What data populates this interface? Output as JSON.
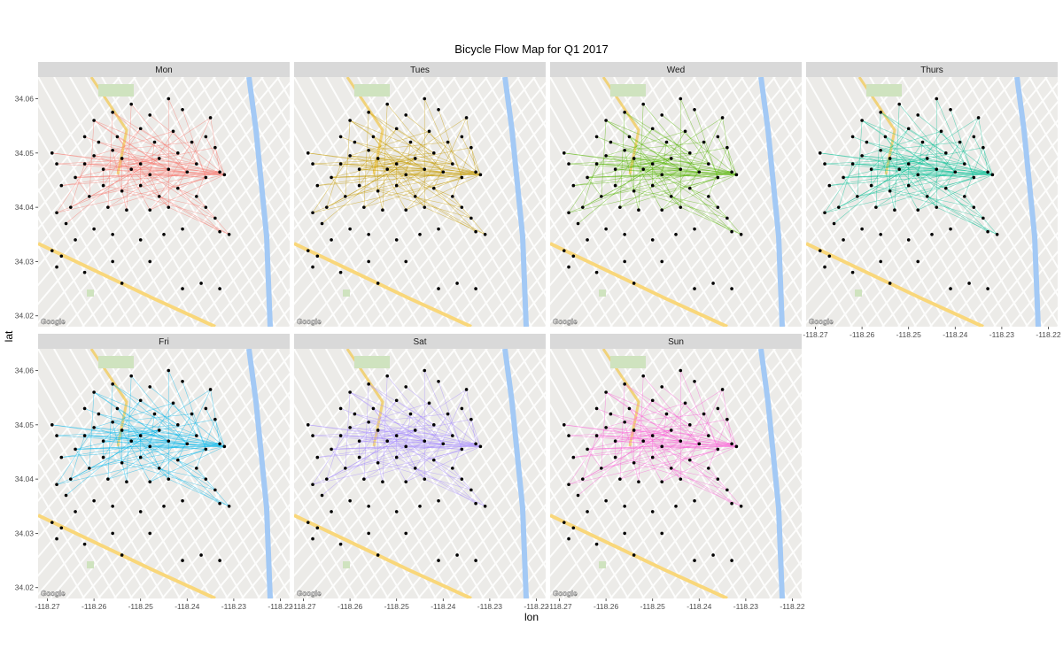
{
  "chart_data": {
    "type": "scatter",
    "title": "Bicycle Flow Map for Q1 2017",
    "xlabel": "lon",
    "ylabel": "lat",
    "xlim": [
      -118.272,
      -118.218
    ],
    "ylim": [
      34.018,
      34.064
    ],
    "x_ticks": [
      -118.27,
      -118.26,
      -118.25,
      -118.24,
      -118.23,
      -118.22
    ],
    "x_tick_labels": [
      "-118.27",
      "-118.26",
      "-118.25",
      "-118.24",
      "-118.23",
      "-118.22"
    ],
    "y_ticks": [
      34.02,
      34.03,
      34.04,
      34.05,
      34.06
    ],
    "y_tick_labels": [
      "34.02",
      "34.03",
      "34.04",
      "34.05",
      "34.06"
    ],
    "grid": false,
    "facet_order": [
      "Mon",
      "Tues",
      "Wed",
      "Thurs",
      "Fri",
      "Sat",
      "Sun"
    ],
    "facets": [
      {
        "label": "Mon",
        "flow_color": "#F8766D"
      },
      {
        "label": "Tues",
        "flow_color": "#C49A00"
      },
      {
        "label": "Wed",
        "flow_color": "#53B400"
      },
      {
        "label": "Thurs",
        "flow_color": "#00C094"
      },
      {
        "label": "Fri",
        "flow_color": "#00B6EB"
      },
      {
        "label": "Sat",
        "flow_color": "#A58AFF"
      },
      {
        "label": "Sun",
        "flow_color": "#FB61D7"
      }
    ],
    "stations": [
      {
        "lon": -118.264,
        "lat": 34.0455
      },
      {
        "lon": -118.262,
        "lat": 34.048
      },
      {
        "lon": -118.26,
        "lat": 34.0495
      },
      {
        "lon": -118.258,
        "lat": 34.047
      },
      {
        "lon": -118.256,
        "lat": 34.0505
      },
      {
        "lon": -118.254,
        "lat": 34.049
      },
      {
        "lon": -118.252,
        "lat": 34.047
      },
      {
        "lon": -118.25,
        "lat": 34.048
      },
      {
        "lon": -118.248,
        "lat": 34.046
      },
      {
        "lon": -118.246,
        "lat": 34.049
      },
      {
        "lon": -118.244,
        "lat": 34.047
      },
      {
        "lon": -118.242,
        "lat": 34.05
      },
      {
        "lon": -118.24,
        "lat": 34.0465
      },
      {
        "lon": -118.238,
        "lat": 34.048
      },
      {
        "lon": -118.236,
        "lat": 34.0455
      },
      {
        "lon": -118.233,
        "lat": 34.0465
      },
      {
        "lon": -118.232,
        "lat": 34.046
      },
      {
        "lon": -118.255,
        "lat": 34.053
      },
      {
        "lon": -118.25,
        "lat": 34.0545
      },
      {
        "lon": -118.247,
        "lat": 34.052
      },
      {
        "lon": -118.243,
        "lat": 34.054
      },
      {
        "lon": -118.239,
        "lat": 34.052
      },
      {
        "lon": -118.235,
        "lat": 34.0565
      },
      {
        "lon": -118.234,
        "lat": 34.051
      },
      {
        "lon": -118.26,
        "lat": 34.056
      },
      {
        "lon": -118.256,
        "lat": 34.0575
      },
      {
        "lon": -118.252,
        "lat": 34.059
      },
      {
        "lon": -118.244,
        "lat": 34.06
      },
      {
        "lon": -118.258,
        "lat": 34.044
      },
      {
        "lon": -118.254,
        "lat": 34.043
      },
      {
        "lon": -118.25,
        "lat": 34.044
      },
      {
        "lon": -118.246,
        "lat": 34.042
      },
      {
        "lon": -118.242,
        "lat": 34.0435
      },
      {
        "lon": -118.238,
        "lat": 34.042
      },
      {
        "lon": -118.261,
        "lat": 34.042
      },
      {
        "lon": -118.265,
        "lat": 34.04
      },
      {
        "lon": -118.268,
        "lat": 34.039
      },
      {
        "lon": -118.266,
        "lat": 34.037
      },
      {
        "lon": -118.257,
        "lat": 34.04
      },
      {
        "lon": -118.253,
        "lat": 34.0395
      },
      {
        "lon": -118.248,
        "lat": 34.0395
      },
      {
        "lon": -118.244,
        "lat": 34.04
      },
      {
        "lon": -118.236,
        "lat": 34.04
      },
      {
        "lon": -118.234,
        "lat": 34.038
      },
      {
        "lon": -118.233,
        "lat": 34.0355
      },
      {
        "lon": -118.231,
        "lat": 34.035
      },
      {
        "lon": -118.268,
        "lat": 34.048
      },
      {
        "lon": -118.269,
        "lat": 34.05
      },
      {
        "lon": -118.267,
        "lat": 34.044
      },
      {
        "lon": -118.269,
        "lat": 34.032
      },
      {
        "lon": -118.267,
        "lat": 34.031
      },
      {
        "lon": -118.264,
        "lat": 34.034
      },
      {
        "lon": -118.26,
        "lat": 34.036
      },
      {
        "lon": -118.256,
        "lat": 34.035
      },
      {
        "lon": -118.25,
        "lat": 34.034
      },
      {
        "lon": -118.245,
        "lat": 34.035
      },
      {
        "lon": -118.241,
        "lat": 34.036
      },
      {
        "lon": -118.256,
        "lat": 34.03
      },
      {
        "lon": -118.248,
        "lat": 34.03
      },
      {
        "lon": -118.262,
        "lat": 34.028
      },
      {
        "lon": -118.254,
        "lat": 34.026
      },
      {
        "lon": -118.268,
        "lat": 34.029
      },
      {
        "lon": -118.241,
        "lat": 34.025
      },
      {
        "lon": -118.237,
        "lat": 34.026
      },
      {
        "lon": -118.233,
        "lat": 34.025
      },
      {
        "lon": -118.259,
        "lat": 34.052
      },
      {
        "lon": -118.262,
        "lat": 34.053
      },
      {
        "lon": -118.248,
        "lat": 34.057
      },
      {
        "lon": -118.241,
        "lat": 34.058
      },
      {
        "lon": -118.236,
        "lat": 34.053
      }
    ],
    "flows": [
      [
        0,
        9
      ],
      [
        0,
        12
      ],
      [
        0,
        15
      ],
      [
        1,
        7
      ],
      [
        1,
        10
      ],
      [
        1,
        16
      ],
      [
        2,
        8
      ],
      [
        2,
        13
      ],
      [
        2,
        20
      ],
      [
        3,
        9
      ],
      [
        3,
        14
      ],
      [
        3,
        18
      ],
      [
        4,
        10
      ],
      [
        4,
        15
      ],
      [
        4,
        21
      ],
      [
        5,
        11
      ],
      [
        5,
        16
      ],
      [
        5,
        29
      ],
      [
        6,
        12
      ],
      [
        6,
        22
      ],
      [
        6,
        33
      ],
      [
        7,
        13
      ],
      [
        7,
        17
      ],
      [
        7,
        30
      ],
      [
        8,
        14
      ],
      [
        8,
        19
      ],
      [
        8,
        31
      ],
      [
        9,
        16
      ],
      [
        9,
        23
      ],
      [
        9,
        35
      ],
      [
        10,
        17
      ],
      [
        10,
        24
      ],
      [
        10,
        38
      ],
      [
        11,
        18
      ],
      [
        11,
        25
      ],
      [
        12,
        19
      ],
      [
        12,
        26
      ],
      [
        12,
        40
      ],
      [
        13,
        20
      ],
      [
        13,
        27
      ],
      [
        14,
        21
      ],
      [
        14,
        32
      ],
      [
        15,
        22
      ],
      [
        15,
        34
      ],
      [
        16,
        23
      ],
      [
        16,
        36
      ],
      [
        17,
        24
      ],
      [
        17,
        41
      ],
      [
        18,
        28
      ],
      [
        19,
        29
      ],
      [
        20,
        30
      ],
      [
        21,
        31
      ],
      [
        22,
        32
      ],
      [
        23,
        33
      ],
      [
        24,
        34
      ],
      [
        25,
        38
      ],
      [
        26,
        39
      ],
      [
        27,
        41
      ],
      [
        28,
        42
      ],
      [
        29,
        43
      ],
      [
        30,
        45
      ],
      [
        31,
        44
      ],
      [
        0,
        34
      ],
      [
        1,
        35
      ],
      [
        2,
        36
      ],
      [
        3,
        28
      ],
      [
        4,
        39
      ],
      [
        5,
        40
      ],
      [
        6,
        41
      ],
      [
        7,
        42
      ],
      [
        8,
        43
      ],
      [
        46,
        9
      ],
      [
        47,
        12
      ],
      [
        48,
        15
      ],
      [
        0,
        16
      ],
      [
        1,
        15
      ],
      [
        46,
        16
      ],
      [
        33,
        45
      ],
      [
        32,
        44
      ],
      [
        41,
        45
      ],
      [
        2,
        16
      ],
      [
        3,
        16
      ],
      [
        5,
        15
      ],
      [
        8,
        16
      ],
      [
        24,
        16
      ],
      [
        25,
        12
      ],
      [
        65,
        13
      ],
      [
        66,
        10
      ],
      [
        67,
        16
      ],
      [
        68,
        14
      ],
      [
        69,
        16
      ],
      [
        47,
        7
      ],
      [
        48,
        10
      ],
      [
        34,
        12
      ],
      [
        35,
        9
      ],
      [
        36,
        8
      ],
      [
        37,
        6
      ],
      [
        38,
        14
      ],
      [
        40,
        16
      ]
    ]
  }
}
